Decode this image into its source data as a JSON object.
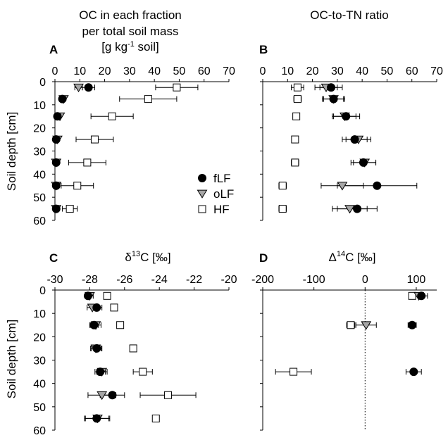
{
  "legend": [
    {
      "name": "fLF",
      "marker": "circle",
      "fill": "#000000"
    },
    {
      "name": "oLF",
      "marker": "triangle-down",
      "fill": "#a6a6a6"
    },
    {
      "name": "HF",
      "marker": "square",
      "fill": "#ffffff"
    }
  ],
  "chart_data": [
    {
      "type": "scatter",
      "panel": "A",
      "title": "OC in each fraction per total soil mass",
      "unit_line": "[g kg",
      "unit_sup": "-1",
      "unit_tail": " soil]",
      "ylabel": "Soil depth [cm]",
      "xlim": [
        0,
        70
      ],
      "xticks": [
        0,
        10,
        20,
        30,
        40,
        50,
        60,
        70
      ],
      "ylim": [
        0,
        60
      ],
      "yticks": [
        0,
        10,
        20,
        30,
        40,
        50,
        60
      ],
      "legend_position": "lower-right",
      "series": [
        {
          "name": "fLF",
          "points": [
            {
              "x": 13.5,
              "y": 2.5,
              "err": 2.5
            },
            {
              "x": 3.0,
              "y": 7.5,
              "err": 0
            },
            {
              "x": 1.0,
              "y": 15,
              "err": 0
            },
            {
              "x": 0.5,
              "y": 25,
              "err": 0
            },
            {
              "x": 0.5,
              "y": 35,
              "err": 0
            },
            {
              "x": 0.5,
              "y": 45,
              "err": 0
            },
            {
              "x": 0.5,
              "y": 55,
              "err": 0
            }
          ]
        },
        {
          "name": "oLF",
          "points": [
            {
              "x": 9.5,
              "y": 2.5,
              "err": 1.5
            },
            {
              "x": 3.5,
              "y": 7.5,
              "err": 0
            },
            {
              "x": 2.0,
              "y": 15,
              "err": 0
            },
            {
              "x": 1.0,
              "y": 25,
              "err": 0
            },
            {
              "x": 0.5,
              "y": 35,
              "err": 0
            },
            {
              "x": 0.5,
              "y": 45,
              "err": 0
            },
            {
              "x": 0.5,
              "y": 55,
              "err": 0
            }
          ]
        },
        {
          "name": "HF",
          "points": [
            {
              "x": 49,
              "y": 2.5,
              "err": 8.5
            },
            {
              "x": 37.5,
              "y": 7.5,
              "err": 11.5
            },
            {
              "x": 23,
              "y": 15,
              "err": 8.5
            },
            {
              "x": 16,
              "y": 25,
              "err": 7.5
            },
            {
              "x": 13,
              "y": 35,
              "err": 7.5
            },
            {
              "x": 9,
              "y": 45,
              "err": 6.5
            },
            {
              "x": 6,
              "y": 55,
              "err": 3
            }
          ]
        }
      ]
    },
    {
      "type": "scatter",
      "panel": "B",
      "title": "OC-to-TN ratio",
      "ylabel": "",
      "xlim": [
        0,
        70
      ],
      "xticks": [
        0,
        10,
        20,
        30,
        40,
        50,
        60,
        70
      ],
      "ylim": [
        0,
        60
      ],
      "yticks": [
        0,
        10,
        20,
        30,
        40,
        50,
        60
      ],
      "series": [
        {
          "name": "fLF",
          "points": [
            {
              "x": 27.5,
              "y": 2.5,
              "err": 4.5
            },
            {
              "x": 28.5,
              "y": 7.5,
              "err": 4
            },
            {
              "x": 33.5,
              "y": 15,
              "err": 5.5
            },
            {
              "x": 37,
              "y": 25,
              "err": 5
            },
            {
              "x": 40.5,
              "y": 35,
              "err": 5
            },
            {
              "x": 46,
              "y": 45,
              "err": 16
            },
            {
              "x": 38,
              "y": 55,
              "err": 8
            }
          ]
        },
        {
          "name": "oLF",
          "points": [
            {
              "x": 25.5,
              "y": 2.5,
              "err": 4.5
            },
            {
              "x": 28.5,
              "y": 7.5,
              "err": 4.5
            },
            {
              "x": 33,
              "y": 15,
              "err": 4.5
            },
            {
              "x": 38.5,
              "y": 25,
              "err": 5
            },
            {
              "x": 41,
              "y": 35,
              "err": 4.5
            },
            {
              "x": 32,
              "y": 45,
              "err": 8.5
            },
            {
              "x": 35,
              "y": 55,
              "err": 7
            }
          ]
        },
        {
          "name": "HF",
          "points": [
            {
              "x": 14,
              "y": 2.5,
              "err": 2.5
            },
            {
              "x": 14,
              "y": 7.5,
              "err": 1.5
            },
            {
              "x": 13.5,
              "y": 15,
              "err": 0.5
            },
            {
              "x": 13,
              "y": 25,
              "err": 1
            },
            {
              "x": 13,
              "y": 35,
              "err": 1.5
            },
            {
              "x": 8,
              "y": 45,
              "err": 1.5
            },
            {
              "x": 8,
              "y": 55,
              "err": 1.5
            }
          ]
        }
      ]
    },
    {
      "type": "scatter",
      "panel": "C",
      "title_prefix": "δ",
      "title_sup": "13",
      "title_suffix": "C [‰]",
      "ylabel": "Soil depth [cm]",
      "xlim": [
        -30,
        -20
      ],
      "xticks": [
        -30,
        -28,
        -26,
        -24,
        -22,
        -20
      ],
      "ylim": [
        0,
        60
      ],
      "yticks": [
        0,
        10,
        20,
        30,
        40,
        50,
        60
      ],
      "series": [
        {
          "name": "fLF",
          "points": [
            {
              "x": -28.1,
              "y": 2.5,
              "err": 0.15
            },
            {
              "x": -27.6,
              "y": 7.5,
              "err": 0.3
            },
            {
              "x": -27.75,
              "y": 15,
              "err": 0.25
            },
            {
              "x": -27.6,
              "y": 25,
              "err": 0.3
            },
            {
              "x": -27.4,
              "y": 35,
              "err": 0.3
            },
            {
              "x": -26.7,
              "y": 45,
              "err": 0.7
            },
            {
              "x": -27.6,
              "y": 55,
              "err": 0.7
            }
          ]
        },
        {
          "name": "oLF",
          "points": [
            {
              "x": -28.0,
              "y": 2.5,
              "err": 0.2
            },
            {
              "x": -27.85,
              "y": 7.5,
              "err": 0.3
            },
            {
              "x": -27.65,
              "y": 15,
              "err": 0.3
            },
            {
              "x": -27.65,
              "y": 25,
              "err": 0.3
            },
            {
              "x": -27.3,
              "y": 35,
              "err": 0.3
            },
            {
              "x": -27.3,
              "y": 45,
              "err": 0.8
            },
            {
              "x": -27.55,
              "y": 55,
              "err": 0.7
            }
          ]
        },
        {
          "name": "HF",
          "points": [
            {
              "x": -27.0,
              "y": 2.5,
              "err": 0
            },
            {
              "x": -26.6,
              "y": 7.5,
              "err": 0
            },
            {
              "x": -26.25,
              "y": 15,
              "err": 0
            },
            {
              "x": -25.5,
              "y": 25,
              "err": 0
            },
            {
              "x": -24.95,
              "y": 35,
              "err": 0.55
            },
            {
              "x": -23.5,
              "y": 45,
              "err": 1.6
            },
            {
              "x": -24.2,
              "y": 55,
              "err": 0
            }
          ]
        }
      ]
    },
    {
      "type": "scatter",
      "panel": "D",
      "title_prefix": "Δ",
      "title_sup": "14",
      "title_suffix": "C [‰]",
      "ylabel": "",
      "xlim": [
        -200,
        140
      ],
      "xticks": [
        -200,
        -100,
        0,
        100
      ],
      "ylim": [
        0,
        60
      ],
      "yticks": [
        0,
        10,
        20,
        30,
        40,
        50,
        60
      ],
      "zero_line": 0,
      "series": [
        {
          "name": "fLF",
          "points": [
            {
              "x": 110,
              "y": 2.5,
              "err": 12
            },
            {
              "x": 92,
              "y": 15,
              "err": 8
            },
            {
              "x": 95,
              "y": 35,
              "err": 15
            }
          ]
        },
        {
          "name": "oLF",
          "points": [
            {
              "x": 105,
              "y": 2.5,
              "err": 10
            },
            {
              "x": 2,
              "y": 15,
              "err": 20
            }
          ]
        },
        {
          "name": "HF",
          "points": [
            {
              "x": 92,
              "y": 2.5,
              "err": 5
            },
            {
              "x": -28,
              "y": 15,
              "err": 8
            },
            {
              "x": -140,
              "y": 35,
              "err": 35
            }
          ]
        }
      ]
    }
  ]
}
